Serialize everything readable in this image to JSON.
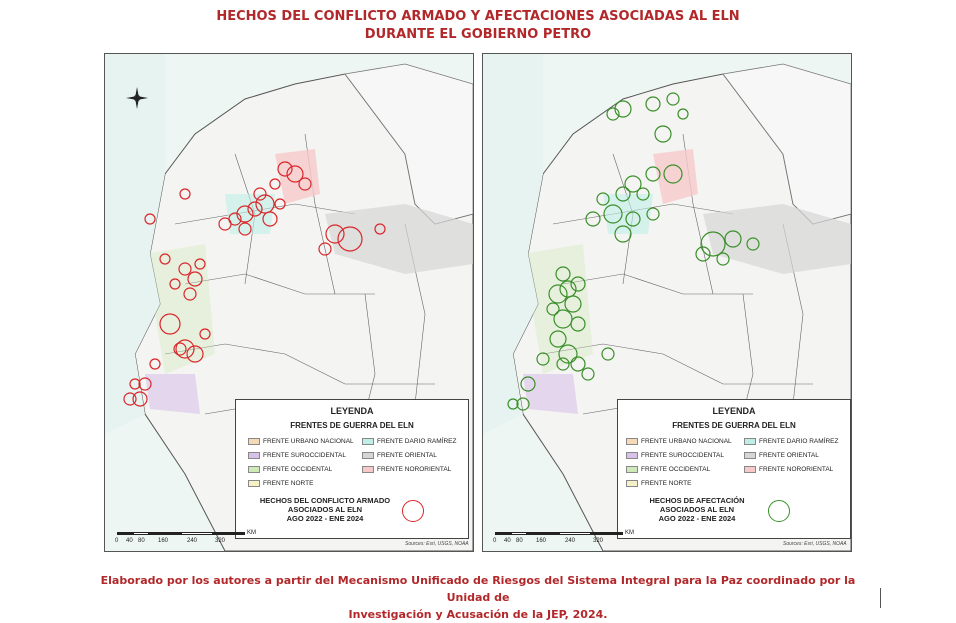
{
  "title_line1": "HECHOS DEL CONFLICTO ARMADO Y AFECTACIONES ASOCIADAS AL ELN",
  "title_line2": "DURANTE EL GOBIERNO PETRO",
  "colors": {
    "title": "#b2282a",
    "left_events": "#d9262a",
    "right_events": "#3a8f2a",
    "frente_urbano_nacional": "#f6d9b6",
    "frente_suroccidental": "#d9c2ea",
    "frente_occidental": "#cfe9b8",
    "frente_norte": "#f4f1c6",
    "frente_dario_ramirez": "#bfeee6",
    "frente_oriental": "#d6d6d6",
    "frente_nororiental": "#f7c9c9"
  },
  "left_map": {
    "legend_title": "LEYENDA",
    "legend_subtitle": "FRENTES DE GUERRA DEL ELN",
    "frentes": [
      {
        "label": "FRENTE URBANO NACIONAL",
        "color": "#f6d9b6"
      },
      {
        "label": "FRENTE SUROCCIDENTAL",
        "color": "#d9c2ea"
      },
      {
        "label": "FRENTE OCCIDENTAL",
        "color": "#cfe9b8"
      },
      {
        "label": "FRENTE NORTE",
        "color": "#f4f1c6"
      },
      {
        "label": "FRENTE DARIO RAMÍREZ",
        "color": "#bfeee6"
      },
      {
        "label": "FRENTE ORIENTAL",
        "color": "#d6d6d6"
      },
      {
        "label": "FRENTE NORORIENTAL",
        "color": "#f7c9c9"
      }
    ],
    "events_label_1": "HECHOS DEL CONFLICTO ARMADO",
    "events_label_2": "ASOCIADOS AL ELN",
    "events_label_3": "AGO 2022 - ENE 2024",
    "scale_labels": [
      "0",
      "40",
      "80",
      "160",
      "240",
      "320"
    ],
    "scale_unit": "KM",
    "source": "Sources: Esri, USGS, NOAA"
  },
  "right_map": {
    "legend_title": "LEYENDA",
    "legend_subtitle": "FRENTES DE GUERRA DEL ELN",
    "frentes": [
      {
        "label": "FRENTE URBANO NACIONAL",
        "color": "#f6d9b6"
      },
      {
        "label": "FRENTE SUROCCIDENTAL",
        "color": "#d9c2ea"
      },
      {
        "label": "FRENTE OCCIDENTAL",
        "color": "#cfe9b8"
      },
      {
        "label": "FRENTE NORTE",
        "color": "#f4f1c6"
      },
      {
        "label": "FRENTE DARIO RAMÍREZ",
        "color": "#bfeee6"
      },
      {
        "label": "FRENTE ORIENTAL",
        "color": "#d6d6d6"
      },
      {
        "label": "FRENTE NORORIENTAL",
        "color": "#f7c9c9"
      }
    ],
    "events_label_1": "HECHOS DE AFECTACIÓN",
    "events_label_2": "ASOCIADOS AL ELN",
    "events_label_3": "AGO 2022 - ENE 2024",
    "scale_labels": [
      "0",
      "40",
      "80",
      "160",
      "240",
      "320"
    ],
    "scale_unit": "KM",
    "source": "Sources: Esri, USGS, NOAA"
  },
  "footer_line1": "Elaborado por los autores a partir del Mecanismo Unificado de Riesgos del Sistema Integral para la Paz coordinado por la Unidad de",
  "footer_line2": "Investigación y Acusación de la JEP, 2024."
}
